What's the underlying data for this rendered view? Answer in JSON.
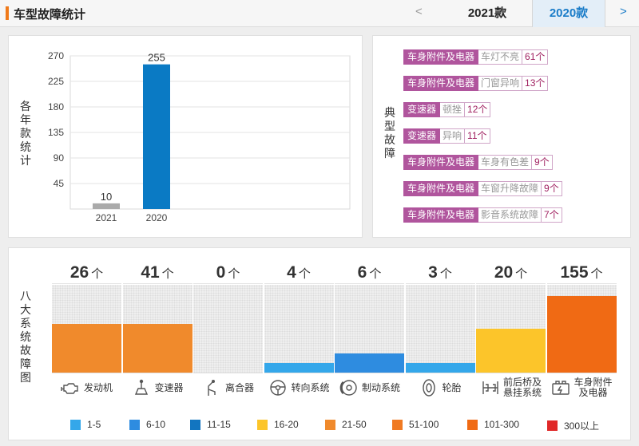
{
  "header": {
    "title": "车型故障统计",
    "prev": "<",
    "next": ">",
    "tabs": [
      "2021款",
      "2020款"
    ],
    "active_tab": "2020款"
  },
  "year_chart": {
    "side_label": "各年款统计"
  },
  "chart_data": {
    "type": "bar",
    "categories": [
      "2021",
      "2020"
    ],
    "values": [
      10,
      255
    ],
    "ylim": [
      0,
      270
    ],
    "yticks": [
      45,
      90,
      135,
      180,
      225,
      270
    ],
    "colors": [
      "#aaaaaa",
      "#0a7ac4"
    ],
    "grid": true
  },
  "faults": {
    "side_label": "典型故障",
    "items": [
      {
        "category": "车身附件及电器",
        "name": "车灯不亮",
        "count": "61个"
      },
      {
        "category": "车身附件及电器",
        "name": "门窗异响",
        "count": "13个"
      },
      {
        "category": "变速器",
        "name": "顿挫",
        "count": "12个"
      },
      {
        "category": "变速器",
        "name": "异响",
        "count": "11个"
      },
      {
        "category": "车身附件及电器",
        "name": "车身有色差",
        "count": "9个"
      },
      {
        "category": "车身附件及电器",
        "name": "车窗升降故障",
        "count": "9个"
      },
      {
        "category": "车身附件及电器",
        "name": "影音系统故障",
        "count": "7个"
      }
    ]
  },
  "systems": {
    "side_label": "八大系统故障图",
    "unit": "个",
    "items": [
      {
        "count": "26",
        "label": "发动机",
        "icon": "engine-icon",
        "level": 0.55,
        "color": "#f08a2c"
      },
      {
        "count": "41",
        "label": "变速器",
        "icon": "gearbox-icon",
        "level": 0.55,
        "color": "#f08a2c"
      },
      {
        "count": "0",
        "label": "离合器",
        "icon": "clutch-icon",
        "level": 0,
        "color": "#eeeeee"
      },
      {
        "count": "4",
        "label": "转向系统",
        "icon": "steering-icon",
        "level": 0.11,
        "color": "#34a7ea"
      },
      {
        "count": "6",
        "label": "制动系统",
        "icon": "brake-icon",
        "level": 0.22,
        "color": "#2e8ce0"
      },
      {
        "count": "3",
        "label": "轮胎",
        "icon": "tire-icon",
        "level": 0.11,
        "color": "#34a7ea"
      },
      {
        "count": "20",
        "label": "前后桥及悬挂系统",
        "icon": "suspension-icon",
        "level": 0.5,
        "color": "#fcc52a"
      },
      {
        "count": "155",
        "label": "车身附件及电器",
        "icon": "body-electric-icon",
        "level": 0.87,
        "color": "#f06a14"
      }
    ]
  },
  "legend": [
    {
      "label": "1-5",
      "color": "#34a7ea"
    },
    {
      "label": "6-10",
      "color": "#2e8ce0"
    },
    {
      "label": "11-15",
      "color": "#1275c0"
    },
    {
      "label": "16-20",
      "color": "#fcc52a"
    },
    {
      "label": "21-50",
      "color": "#f08a2c"
    },
    {
      "label": "51-100",
      "color": "#f07a22"
    },
    {
      "label": "101-300",
      "color": "#f06a14"
    },
    {
      "label": "300以上",
      "color": "#e02828"
    }
  ]
}
